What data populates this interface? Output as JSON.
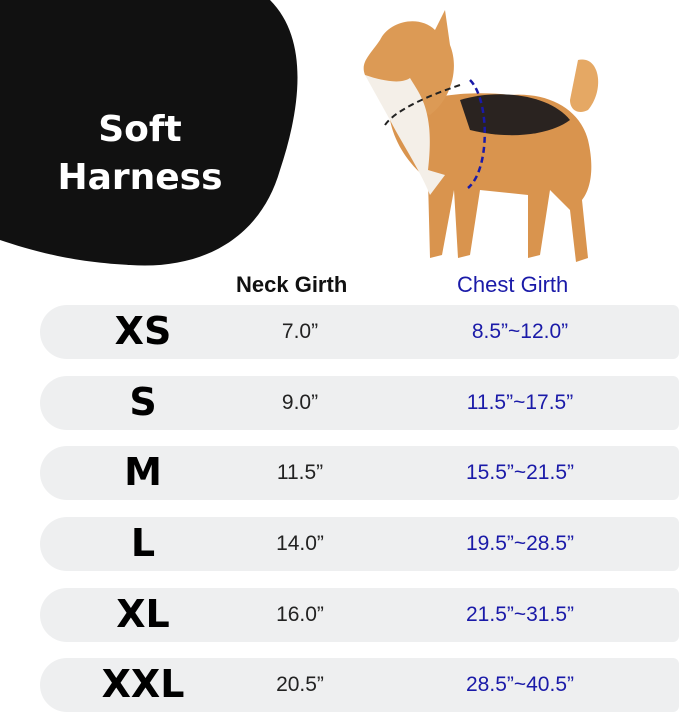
{
  "title_lines": [
    "Soft",
    "Harness"
  ],
  "headers": {
    "neck": "Neck Girth",
    "chest": "Chest Girth"
  },
  "colors": {
    "chest": "#1a1aa8",
    "band": "#eeeff0",
    "blob": "#111111"
  },
  "rows": [
    {
      "size": "XS",
      "neck": "7.0”",
      "chest": "8.5”~12.0”"
    },
    {
      "size": "S",
      "neck": "9.0”",
      "chest": "11.5”~17.5”"
    },
    {
      "size": "M",
      "neck": "11.5”",
      "chest": "15.5”~21.5”"
    },
    {
      "size": "L",
      "neck": "14.0”",
      "chest": "19.5”~28.5”"
    },
    {
      "size": "XL",
      "neck": "16.0”",
      "chest": "21.5”~31.5”"
    },
    {
      "size": "XXL",
      "neck": "20.5”",
      "chest": "28.5”~40.5”"
    }
  ]
}
